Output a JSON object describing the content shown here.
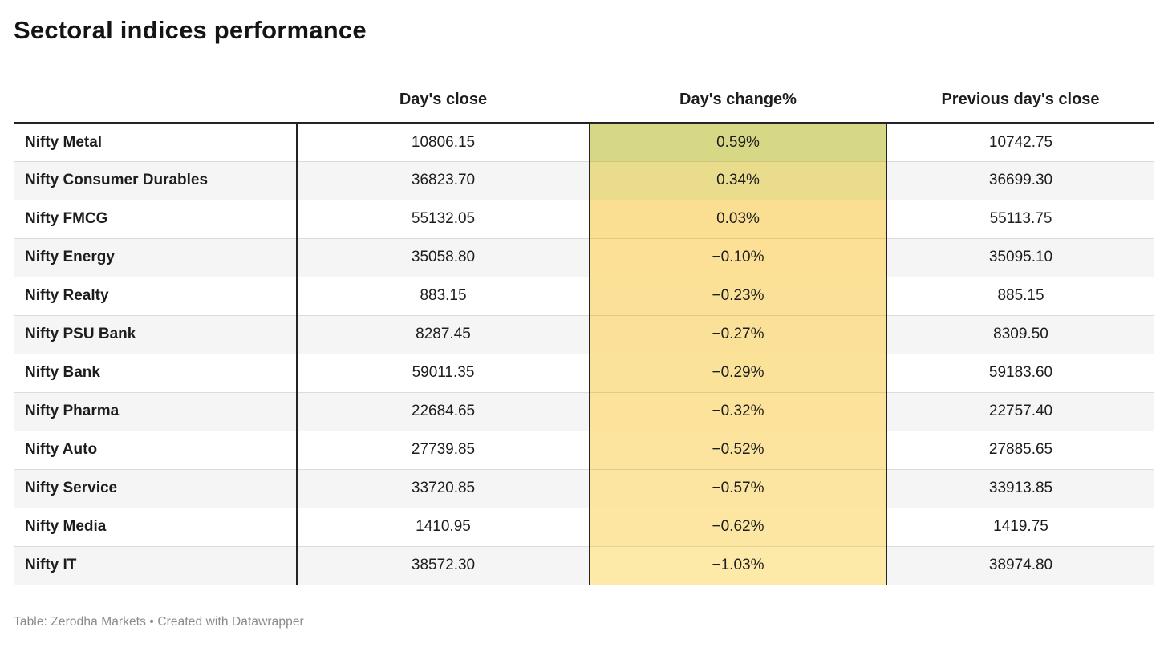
{
  "chart_data": {
    "type": "table",
    "title": "Sectoral indices performance",
    "columns": [
      "",
      "Day's close",
      "Day's change%",
      "Previous day's close"
    ],
    "rows": [
      [
        "Nifty Metal",
        "10806.15",
        "0.59%",
        "10742.75"
      ],
      [
        "Nifty Consumer Durables",
        "36823.70",
        "0.34%",
        "36699.30"
      ],
      [
        "Nifty FMCG",
        "55132.05",
        "0.03%",
        "55113.75"
      ],
      [
        "Nifty Energy",
        "35058.80",
        "−0.10%",
        "35095.10"
      ],
      [
        "Nifty Realty",
        "883.15",
        "−0.23%",
        "885.15"
      ],
      [
        "Nifty PSU Bank",
        "8287.45",
        "−0.27%",
        "8309.50"
      ],
      [
        "Nifty Bank",
        "59011.35",
        "−0.29%",
        "59183.60"
      ],
      [
        "Nifty Pharma",
        "22684.65",
        "−0.32%",
        "22757.40"
      ],
      [
        "Nifty Auto",
        "27739.85",
        "−0.52%",
        "27885.65"
      ],
      [
        "Nifty Service",
        "33720.85",
        "−0.57%",
        "33913.85"
      ],
      [
        "Nifty Media",
        "1410.95",
        "−0.62%",
        "1419.75"
      ],
      [
        "Nifty IT",
        "38572.30",
        "−1.03%",
        "38974.80"
      ]
    ],
    "numeric": {
      "day_close": [
        10806.15,
        36823.7,
        55132.05,
        35058.8,
        883.15,
        8287.45,
        59011.35,
        22684.65,
        27739.85,
        33720.85,
        1410.95,
        38572.3
      ],
      "day_change_pct": [
        0.59,
        0.34,
        0.03,
        -0.1,
        -0.23,
        -0.27,
        -0.29,
        -0.32,
        -0.52,
        -0.57,
        -0.62,
        -1.03
      ],
      "prev_close": [
        10742.75,
        36699.3,
        55113.75,
        35095.1,
        885.15,
        8309.5,
        59183.6,
        22757.4,
        27885.65,
        33913.85,
        1419.75,
        38974.8
      ]
    },
    "change_cell_colors": [
      "#d6d886",
      "#e9dc8c",
      "#fadf92",
      "#fbe095",
      "#fbe197",
      "#fbe198",
      "#fbe299",
      "#fce29a",
      "#fce49e",
      "#fce5a0",
      "#fce6a2",
      "#fdeaa9"
    ],
    "layout_colors": {
      "row_stripe": "#f5f5f5",
      "table_rule": "#242424",
      "footer_text": "#8a8a8a"
    }
  },
  "footer": {
    "credit": "Table: Zerodha Markets • Created with Datawrapper"
  }
}
